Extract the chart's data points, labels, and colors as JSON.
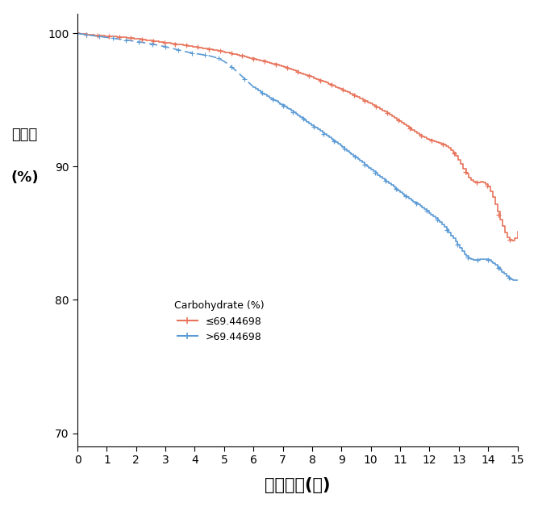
{
  "title": "",
  "xlabel": "생존기간(년)",
  "ylabel_line1": "생존율",
  "ylabel_line2": "(%)",
  "xlim": [
    0,
    15
  ],
  "ylim": [
    69,
    101.5
  ],
  "xticks": [
    0,
    1,
    2,
    3,
    4,
    5,
    6,
    7,
    8,
    9,
    10,
    11,
    12,
    13,
    14,
    15
  ],
  "yticks": [
    70,
    80,
    90,
    100
  ],
  "color_low": "#E8735A",
  "color_high": "#5B9BD5",
  "legend_title": "Carbohydrate (%)",
  "legend_label_low": "≤69.44698",
  "legend_label_high": ">69.44698",
  "background_color": "#FFFFFF",
  "red_x": [
    0,
    1,
    2,
    3,
    4,
    5,
    6,
    7,
    8,
    9,
    10,
    11,
    12,
    13,
    13.4,
    14,
    14.5,
    15
  ],
  "red_y": [
    100,
    99.8,
    99.6,
    99.3,
    99.0,
    98.6,
    98.1,
    97.5,
    96.7,
    95.8,
    94.7,
    93.4,
    92.0,
    90.5,
    89.0,
    88.5,
    85.5,
    85.1
  ],
  "blue_x": [
    0,
    1,
    2,
    3,
    4,
    5,
    6,
    7,
    8,
    9,
    10,
    11,
    12,
    12.5,
    13,
    13.3,
    14,
    14.3,
    15
  ],
  "blue_y": [
    100,
    99.7,
    99.4,
    99.0,
    98.5,
    97.9,
    96.0,
    94.6,
    93.1,
    91.5,
    89.8,
    88.1,
    86.5,
    85.5,
    84.0,
    83.2,
    83.0,
    82.5,
    81.5
  ],
  "blue_dash_end": 6.0
}
